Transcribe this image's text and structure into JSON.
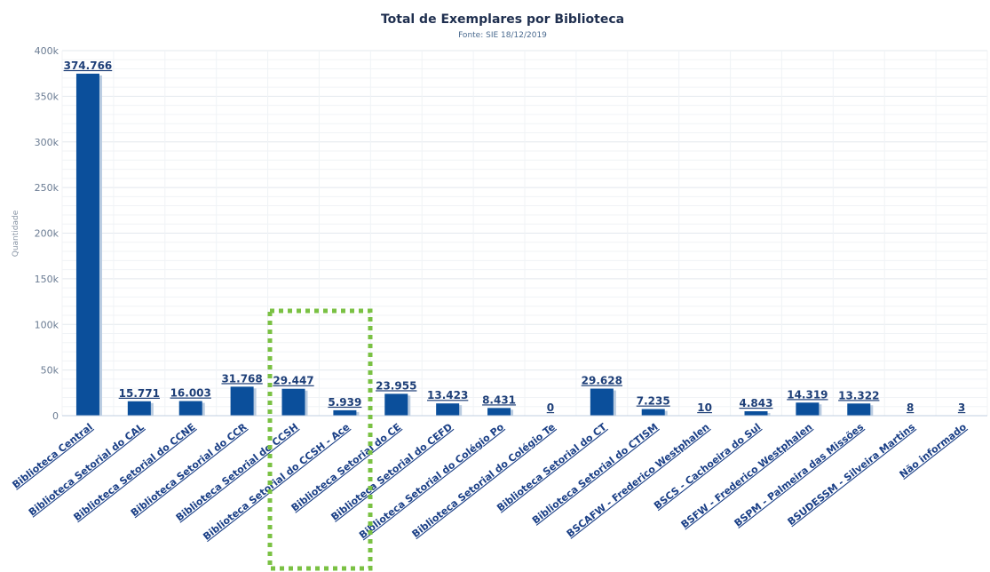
{
  "chart_data": {
    "type": "bar",
    "title": "Total de Exemplares por Biblioteca",
    "subtitle": "Fonte: SIE 18/12/2019",
    "xlabel": "",
    "ylabel": "Quantidade",
    "ylim": [
      0,
      400000
    ],
    "y_ticks": [
      "0",
      "50k",
      "100k",
      "150k",
      "200k",
      "250k",
      "300k",
      "350k",
      "400k"
    ],
    "y_tick_values": [
      0,
      50000,
      100000,
      150000,
      200000,
      250000,
      300000,
      350000,
      400000
    ],
    "grid": true,
    "legend": "none",
    "categories": [
      "Biblioteca Central",
      "Biblioteca Setorial do CAL",
      "Biblioteca Setorial do CCNE",
      "Biblioteca Setorial do CCR",
      "Biblioteca Setorial do CCSH",
      "Biblioteca Setorial do CCSH - Ace",
      "Biblioteca Setorial do CE",
      "Biblioteca Setorial do CEFD",
      "Biblioteca Setorial do Colégio Po",
      "Biblioteca Setorial do Colégio Te",
      "Biblioteca Setorial do CT",
      "Biblioteca Setorial do CTISM",
      "BSCAFW - Frederico Westphalen",
      "BSCS - Cachoeira do Sul",
      "BSFW - Frederico Westphalen",
      "BSPM - Palmeira das Missões",
      "BSUDESSM - Silveira Martins",
      "Não informado"
    ],
    "values": [
      374766,
      15771,
      16003,
      31768,
      29447,
      5939,
      23955,
      13423,
      8431,
      0,
      29628,
      7235,
      10,
      4843,
      14319,
      13322,
      8,
      3
    ],
    "data_labels": [
      "374.766",
      "15.771",
      "16.003",
      "31.768",
      "29.447",
      "5.939",
      "23.955",
      "13.423",
      "8.431",
      "0",
      "29.628",
      "7.235",
      "10",
      "4.843",
      "14.319",
      "13.322",
      "8",
      "3"
    ],
    "colors": {
      "bar": "#0b4f9b",
      "bar_shadow": "#b9cbe0",
      "highlight_box": "#7ac143",
      "grid": "#e3e8ee",
      "grid_minor": "#f0f3f6"
    },
    "annotations": [
      {
        "type": "dotted-highlight-box",
        "categories": [
          "Biblioteca Setorial do CCSH",
          "Biblioteca Setorial do CCSH - Ace"
        ]
      }
    ]
  }
}
